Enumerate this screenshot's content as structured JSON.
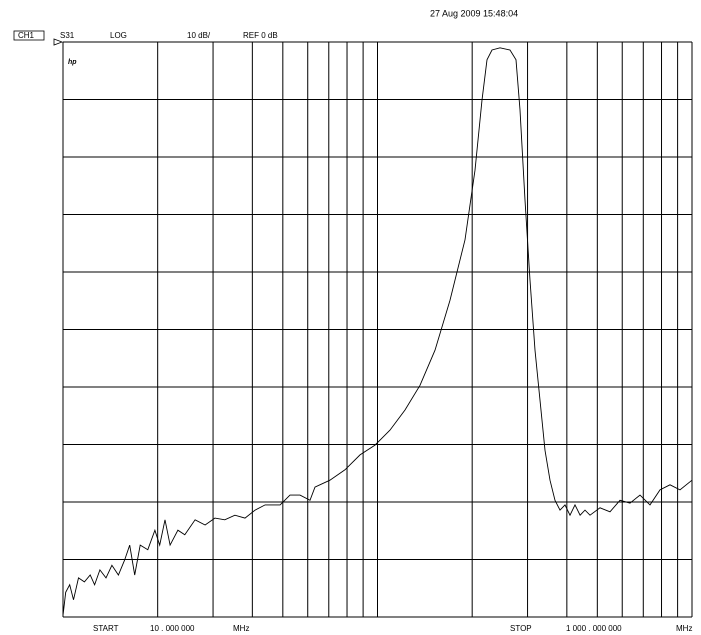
{
  "header": {
    "timestamp": "27 Aug 2009 15:48:04",
    "channel": "CH1",
    "parameter": "S31",
    "format": "LOG",
    "scale": "10 dB/",
    "reference": "REF 0 dB",
    "logo": "hp"
  },
  "footer": {
    "start_label": "START",
    "start_value": "10 . 000 000",
    "start_unit": "MHz",
    "stop_label": "STOP",
    "stop_value": "1 000 . 000 000",
    "stop_unit": "MHz"
  },
  "chart_data": {
    "type": "line",
    "xscale": "log",
    "grid": true,
    "xlim": [
      10,
      1000
    ],
    "ylim": [
      -100,
      0
    ],
    "xticks": [
      10,
      20,
      30,
      40,
      50,
      60,
      70,
      80,
      90,
      100,
      200,
      300,
      400,
      500,
      600,
      700,
      800,
      900,
      1000
    ],
    "yticks": [
      -100,
      -90,
      -80,
      -70,
      -60,
      -50,
      -40,
      -30,
      -20,
      -10,
      0
    ],
    "series": [
      {
        "color": "#000000",
        "x": [
          10,
          10.2,
          10.5,
          10.8,
          11.2,
          11.7,
          12.2,
          12.6,
          13.1,
          13.7,
          14.3,
          15.0,
          15.7,
          16.3,
          16.9,
          17.6,
          18.6,
          19.6,
          20.3,
          21.1,
          21.9,
          23.2,
          24.4,
          26.3,
          28.3,
          30.4,
          32.7,
          35.2,
          37.9,
          40.8,
          43.9,
          49.0,
          52.7,
          56.7,
          61.0,
          63.3,
          70.6,
          78.8,
          88.0,
          98.2,
          109.6,
          122.3,
          136.5,
          152.3,
          170.0,
          189.7,
          204.2,
          214.9,
          222.9,
          231.2,
          245.2,
          263.8,
          275.6,
          283.9,
          294.4,
          305.4,
          316.8,
          328.6,
          340.9,
          353.6,
          366.8,
          380.5,
          394.7,
          409.4,
          424.6,
          440.6,
          456.9,
          474.0,
          510.0,
          548.8,
          590.4,
          635.3,
          683.6,
          735.4,
          791.4,
          851.1,
          915.9,
          1000
        ],
        "values": [
          -99.7,
          -95.7,
          -94.4,
          -97.0,
          -93.2,
          -93.9,
          -92.7,
          -94.4,
          -91.8,
          -93.2,
          -91.0,
          -92.7,
          -90.1,
          -87.5,
          -92.7,
          -87.5,
          -88.3,
          -84.9,
          -87.5,
          -83.1,
          -87.5,
          -84.9,
          -85.7,
          -83.1,
          -84.0,
          -82.8,
          -83.1,
          -82.3,
          -82.8,
          -81.4,
          -80.5,
          -80.5,
          -78.8,
          -78.8,
          -79.7,
          -77.4,
          -76.2,
          -74.4,
          -71.8,
          -70.1,
          -67.5,
          -64.0,
          -59.7,
          -53.6,
          -44.9,
          -34.4,
          -22.3,
          -10.1,
          -3.1,
          -1.4,
          -1.0,
          -1.4,
          -3.1,
          -11.8,
          -27.5,
          -41.4,
          -53.6,
          -62.3,
          -71.0,
          -76.2,
          -79.7,
          -81.4,
          -80.5,
          -82.3,
          -80.5,
          -82.3,
          -81.4,
          -82.3,
          -81.0,
          -81.7,
          -79.7,
          -80.2,
          -78.8,
          -80.5,
          -77.9,
          -77.0,
          -77.9,
          -76.2
        ]
      }
    ]
  }
}
